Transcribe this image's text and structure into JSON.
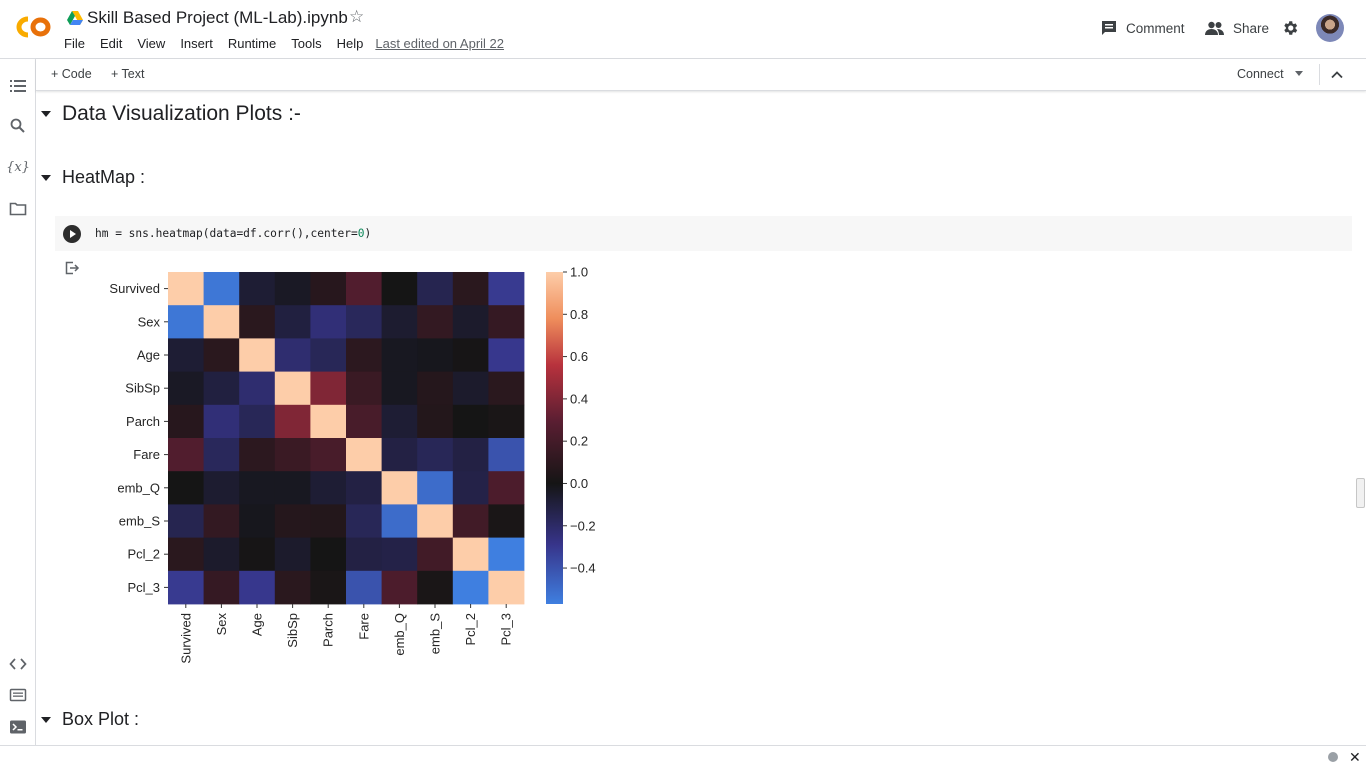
{
  "app": {
    "logo_text": "CO",
    "notebook_title": "Skill Based Project (ML-Lab).ipynb",
    "last_edited": "Last edited on April 22"
  },
  "menu": [
    {
      "label": "File"
    },
    {
      "label": "Edit"
    },
    {
      "label": "View"
    },
    {
      "label": "Insert"
    },
    {
      "label": "Runtime"
    },
    {
      "label": "Tools"
    },
    {
      "label": "Help"
    }
  ],
  "header_buttons": {
    "comment": "Comment",
    "share": "Share"
  },
  "toolbar": {
    "add_code": "+ Code",
    "add_text": "+ Text",
    "connect": "Connect"
  },
  "sections": {
    "s1": "Data Visualization Plots :-",
    "s2": "HeatMap :",
    "s3": "Box Plot :"
  },
  "code_cell": {
    "source_prefix": "hm = sns.heatmap(data=df.corr(),center=",
    "source_number": "0",
    "source_suffix": ")"
  },
  "colors": {
    "accent_orange": "#F9AB00",
    "status_grey": "#9aa0a6",
    "heat_positive_max": "#fdcda9",
    "heat_negative_max": "#3f7fe0"
  },
  "chart_data": {
    "type": "heatmap",
    "title": "",
    "labels": [
      "Survived",
      "Sex",
      "Age",
      "SibSp",
      "Parch",
      "Fare",
      "emb_Q",
      "emb_S",
      "Pcl_2",
      "Pcl_3"
    ],
    "values": [
      [
        1.0,
        -0.54,
        -0.08,
        -0.04,
        0.08,
        0.26,
        0.0,
        -0.15,
        0.09,
        -0.32
      ],
      [
        -0.54,
        1.0,
        0.09,
        -0.11,
        -0.25,
        -0.18,
        -0.07,
        0.13,
        -0.06,
        0.14
      ],
      [
        -0.08,
        0.09,
        1.0,
        -0.23,
        -0.17,
        0.1,
        -0.03,
        -0.02,
        0.01,
        -0.31
      ],
      [
        -0.04,
        -0.11,
        -0.23,
        1.0,
        0.41,
        0.16,
        -0.03,
        0.07,
        -0.06,
        0.09
      ],
      [
        0.08,
        -0.25,
        -0.17,
        0.41,
        1.0,
        0.22,
        -0.08,
        0.06,
        -0.0,
        0.02
      ],
      [
        0.26,
        -0.18,
        0.1,
        0.16,
        0.22,
        1.0,
        -0.12,
        -0.17,
        -0.12,
        -0.41
      ],
      [
        0.0,
        -0.07,
        -0.03,
        -0.03,
        -0.08,
        -0.12,
        1.0,
        -0.5,
        -0.13,
        0.24
      ],
      [
        -0.15,
        0.13,
        -0.02,
        0.07,
        0.06,
        -0.17,
        -0.5,
        1.0,
        0.19,
        0.02
      ],
      [
        0.09,
        -0.06,
        0.01,
        -0.06,
        -0.0,
        -0.12,
        -0.13,
        0.19,
        1.0,
        -0.57
      ],
      [
        -0.32,
        0.14,
        -0.31,
        0.09,
        0.02,
        -0.41,
        0.24,
        0.02,
        -0.57,
        1.0
      ]
    ],
    "colorbar": {
      "vmin": -0.57,
      "vmax": 1.0,
      "center": 0,
      "ticks": [
        1.0,
        0.8,
        0.6,
        0.4,
        0.2,
        0.0,
        -0.2,
        -0.4
      ],
      "tick_labels": [
        "1.0",
        "0.8",
        "0.6",
        "0.4",
        "0.2",
        "0.0",
        "−0.2",
        "−0.4"
      ]
    }
  }
}
